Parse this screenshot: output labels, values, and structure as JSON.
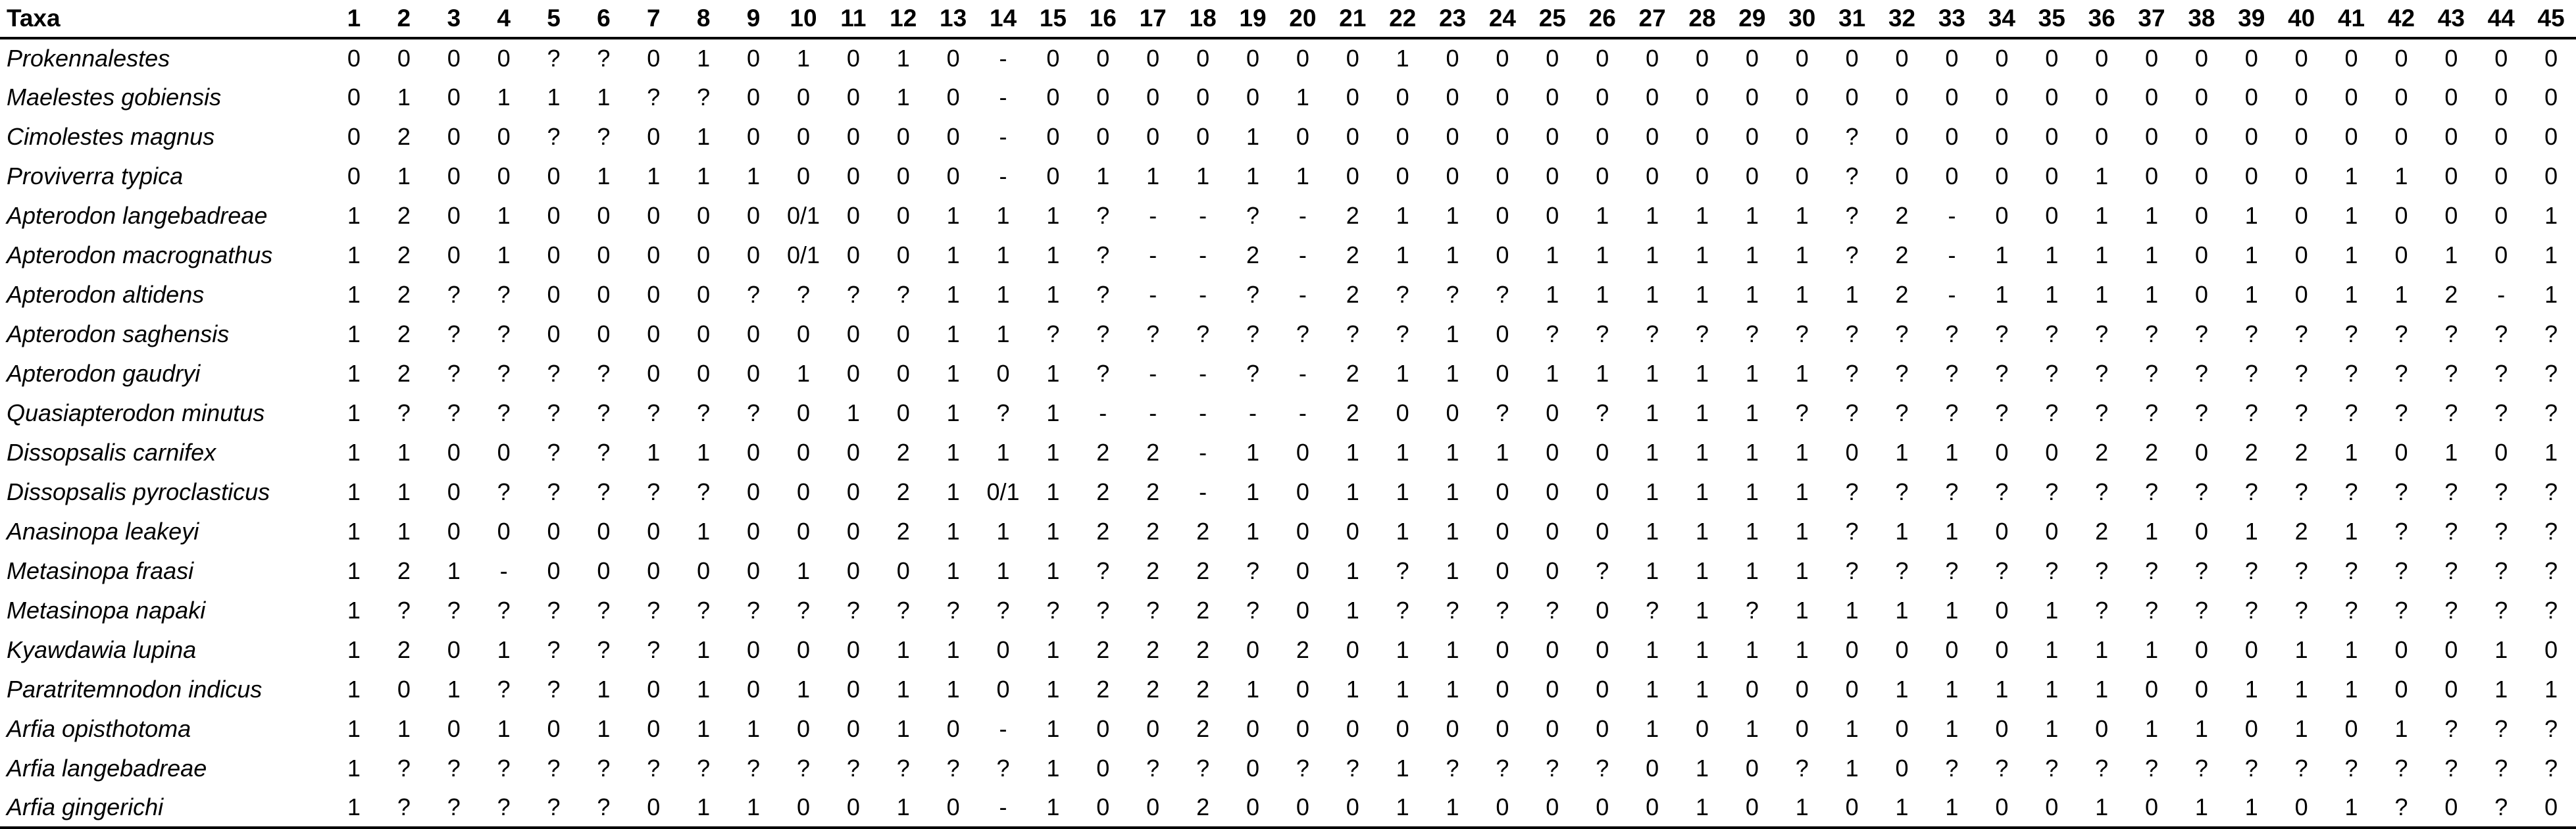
{
  "table": {
    "taxa_label": "Taxa",
    "characters": [
      "1",
      "2",
      "3",
      "4",
      "5",
      "6",
      "7",
      "8",
      "9",
      "10",
      "11",
      "12",
      "13",
      "14",
      "15",
      "16",
      "17",
      "18",
      "19",
      "20",
      "21",
      "22",
      "23",
      "24",
      "25",
      "26",
      "27",
      "28",
      "29",
      "30",
      "31",
      "32",
      "33",
      "34",
      "35",
      "36",
      "37",
      "38",
      "39",
      "40",
      "41",
      "42",
      "43",
      "44",
      "45"
    ],
    "rows": [
      {
        "taxon": "Prokennalestes",
        "states": [
          "0",
          "0",
          "0",
          "0",
          "?",
          "?",
          "0",
          "1",
          "0",
          "1",
          "0",
          "1",
          "0",
          "-",
          "0",
          "0",
          "0",
          "0",
          "0",
          "0",
          "0",
          "1",
          "0",
          "0",
          "0",
          "0",
          "0",
          "0",
          "0",
          "0",
          "0",
          "0",
          "0",
          "0",
          "0",
          "0",
          "0",
          "0",
          "0",
          "0",
          "0",
          "0",
          "0",
          "0",
          "0"
        ]
      },
      {
        "taxon": "Maelestes gobiensis",
        "states": [
          "0",
          "1",
          "0",
          "1",
          "1",
          "1",
          "?",
          "?",
          "0",
          "0",
          "0",
          "1",
          "0",
          "-",
          "0",
          "0",
          "0",
          "0",
          "0",
          "1",
          "0",
          "0",
          "0",
          "0",
          "0",
          "0",
          "0",
          "0",
          "0",
          "0",
          "0",
          "0",
          "0",
          "0",
          "0",
          "0",
          "0",
          "0",
          "0",
          "0",
          "0",
          "0",
          "0",
          "0",
          "0"
        ]
      },
      {
        "taxon": "Cimolestes magnus",
        "states": [
          "0",
          "2",
          "0",
          "0",
          "?",
          "?",
          "0",
          "1",
          "0",
          "0",
          "0",
          "0",
          "0",
          "-",
          "0",
          "0",
          "0",
          "0",
          "1",
          "0",
          "0",
          "0",
          "0",
          "0",
          "0",
          "0",
          "0",
          "0",
          "0",
          "0",
          "?",
          "0",
          "0",
          "0",
          "0",
          "0",
          "0",
          "0",
          "0",
          "0",
          "0",
          "0",
          "0",
          "0",
          "0"
        ]
      },
      {
        "taxon": "Proviverra typica",
        "states": [
          "0",
          "1",
          "0",
          "0",
          "0",
          "1",
          "1",
          "1",
          "1",
          "0",
          "0",
          "0",
          "0",
          "-",
          "0",
          "1",
          "1",
          "1",
          "1",
          "1",
          "0",
          "0",
          "0",
          "0",
          "0",
          "0",
          "0",
          "0",
          "0",
          "0",
          "?",
          "0",
          "0",
          "0",
          "0",
          "1",
          "0",
          "0",
          "0",
          "0",
          "1",
          "1",
          "0",
          "0",
          "0"
        ]
      },
      {
        "taxon": "Apterodon langebadreae",
        "states": [
          "1",
          "2",
          "0",
          "1",
          "0",
          "0",
          "0",
          "0",
          "0",
          "0/1",
          "0",
          "0",
          "1",
          "1",
          "1",
          "?",
          "-",
          "-",
          "?",
          "-",
          "2",
          "1",
          "1",
          "0",
          "0",
          "1",
          "1",
          "1",
          "1",
          "1",
          "?",
          "2",
          "-",
          "0",
          "0",
          "1",
          "1",
          "0",
          "1",
          "0",
          "1",
          "0",
          "0",
          "0",
          "1"
        ]
      },
      {
        "taxon": "Apterodon macrognathus",
        "states": [
          "1",
          "2",
          "0",
          "1",
          "0",
          "0",
          "0",
          "0",
          "0",
          "0/1",
          "0",
          "0",
          "1",
          "1",
          "1",
          "?",
          "-",
          "-",
          "2",
          "-",
          "2",
          "1",
          "1",
          "0",
          "1",
          "1",
          "1",
          "1",
          "1",
          "1",
          "?",
          "2",
          "-",
          "1",
          "1",
          "1",
          "1",
          "0",
          "1",
          "0",
          "1",
          "0",
          "1",
          "0",
          "1"
        ]
      },
      {
        "taxon": "Apterodon altidens",
        "states": [
          "1",
          "2",
          "?",
          "?",
          "0",
          "0",
          "0",
          "0",
          "?",
          "?",
          "?",
          "?",
          "1",
          "1",
          "1",
          "?",
          "-",
          "-",
          "?",
          "-",
          "2",
          "?",
          "?",
          "?",
          "1",
          "1",
          "1",
          "1",
          "1",
          "1",
          "1",
          "2",
          "-",
          "1",
          "1",
          "1",
          "1",
          "0",
          "1",
          "0",
          "1",
          "1",
          "2",
          "-",
          "1"
        ]
      },
      {
        "taxon": "Apterodon saghensis",
        "states": [
          "1",
          "2",
          "?",
          "?",
          "0",
          "0",
          "0",
          "0",
          "0",
          "0",
          "0",
          "0",
          "1",
          "1",
          "?",
          "?",
          "?",
          "?",
          "?",
          "?",
          "?",
          "?",
          "1",
          "0",
          "?",
          "?",
          "?",
          "?",
          "?",
          "?",
          "?",
          "?",
          "?",
          "?",
          "?",
          "?",
          "?",
          "?",
          "?",
          "?",
          "?",
          "?",
          "?",
          "?",
          "?"
        ]
      },
      {
        "taxon": "Apterodon gaudryi",
        "states": [
          "1",
          "2",
          "?",
          "?",
          "?",
          "?",
          "0",
          "0",
          "0",
          "1",
          "0",
          "0",
          "1",
          "0",
          "1",
          "?",
          "-",
          "-",
          "?",
          "-",
          "2",
          "1",
          "1",
          "0",
          "1",
          "1",
          "1",
          "1",
          "1",
          "1",
          "?",
          "?",
          "?",
          "?",
          "?",
          "?",
          "?",
          "?",
          "?",
          "?",
          "?",
          "?",
          "?",
          "?",
          "?"
        ]
      },
      {
        "taxon": "Quasiapterodon minutus",
        "states": [
          "1",
          "?",
          "?",
          "?",
          "?",
          "?",
          "?",
          "?",
          "?",
          "0",
          "1",
          "0",
          "1",
          "?",
          "1",
          "-",
          "-",
          "-",
          "-",
          "-",
          "2",
          "0",
          "0",
          "?",
          "0",
          "?",
          "1",
          "1",
          "1",
          "?",
          "?",
          "?",
          "?",
          "?",
          "?",
          "?",
          "?",
          "?",
          "?",
          "?",
          "?",
          "?",
          "?",
          "?",
          "?"
        ]
      },
      {
        "taxon": "Dissopsalis carnifex",
        "states": [
          "1",
          "1",
          "0",
          "0",
          "?",
          "?",
          "1",
          "1",
          "0",
          "0",
          "0",
          "2",
          "1",
          "1",
          "1",
          "2",
          "2",
          "-",
          "1",
          "0",
          "1",
          "1",
          "1",
          "1",
          "0",
          "0",
          "1",
          "1",
          "1",
          "1",
          "0",
          "1",
          "1",
          "0",
          "0",
          "2",
          "2",
          "0",
          "2",
          "2",
          "1",
          "0",
          "1",
          "0",
          "1"
        ]
      },
      {
        "taxon": "Dissopsalis pyroclasticus",
        "states": [
          "1",
          "1",
          "0",
          "?",
          "?",
          "?",
          "?",
          "?",
          "0",
          "0",
          "0",
          "2",
          "1",
          "0/1",
          "1",
          "2",
          "2",
          "-",
          "1",
          "0",
          "1",
          "1",
          "1",
          "0",
          "0",
          "0",
          "1",
          "1",
          "1",
          "1",
          "?",
          "?",
          "?",
          "?",
          "?",
          "?",
          "?",
          "?",
          "?",
          "?",
          "?",
          "?",
          "?",
          "?",
          "?"
        ]
      },
      {
        "taxon": "Anasinopa leakeyi",
        "states": [
          "1",
          "1",
          "0",
          "0",
          "0",
          "0",
          "0",
          "1",
          "0",
          "0",
          "0",
          "2",
          "1",
          "1",
          "1",
          "2",
          "2",
          "2",
          "1",
          "0",
          "0",
          "1",
          "1",
          "0",
          "0",
          "0",
          "1",
          "1",
          "1",
          "1",
          "?",
          "1",
          "1",
          "0",
          "0",
          "2",
          "1",
          "0",
          "1",
          "2",
          "1",
          "?",
          "?",
          "?",
          "?"
        ]
      },
      {
        "taxon": "Metasinopa fraasi",
        "states": [
          "1",
          "2",
          "1",
          "-",
          "0",
          "0",
          "0",
          "0",
          "0",
          "1",
          "0",
          "0",
          "1",
          "1",
          "1",
          "?",
          "2",
          "2",
          "?",
          "0",
          "1",
          "?",
          "1",
          "0",
          "0",
          "?",
          "1",
          "1",
          "1",
          "1",
          "?",
          "?",
          "?",
          "?",
          "?",
          "?",
          "?",
          "?",
          "?",
          "?",
          "?",
          "?",
          "?",
          "?",
          "?"
        ]
      },
      {
        "taxon": "Metasinopa napaki",
        "states": [
          "1",
          "?",
          "?",
          "?",
          "?",
          "?",
          "?",
          "?",
          "?",
          "?",
          "?",
          "?",
          "?",
          "?",
          "?",
          "?",
          "?",
          "2",
          "?",
          "0",
          "1",
          "?",
          "?",
          "?",
          "?",
          "0",
          "?",
          "1",
          "?",
          "1",
          "1",
          "1",
          "1",
          "0",
          "1",
          "?",
          "?",
          "?",
          "?",
          "?",
          "?",
          "?",
          "?",
          "?",
          "?"
        ]
      },
      {
        "taxon": "Kyawdawia lupina",
        "states": [
          "1",
          "2",
          "0",
          "1",
          "?",
          "?",
          "?",
          "1",
          "0",
          "0",
          "0",
          "1",
          "1",
          "0",
          "1",
          "2",
          "2",
          "2",
          "0",
          "2",
          "0",
          "1",
          "1",
          "0",
          "0",
          "0",
          "1",
          "1",
          "1",
          "1",
          "0",
          "0",
          "0",
          "0",
          "1",
          "1",
          "1",
          "0",
          "0",
          "1",
          "1",
          "0",
          "0",
          "1",
          "0"
        ]
      },
      {
        "taxon": "Paratritemnodon indicus",
        "states": [
          "1",
          "0",
          "1",
          "?",
          "?",
          "1",
          "0",
          "1",
          "0",
          "1",
          "0",
          "1",
          "1",
          "0",
          "1",
          "2",
          "2",
          "2",
          "1",
          "0",
          "1",
          "1",
          "1",
          "0",
          "0",
          "0",
          "1",
          "1",
          "0",
          "0",
          "0",
          "1",
          "1",
          "1",
          "1",
          "1",
          "0",
          "0",
          "1",
          "1",
          "1",
          "0",
          "0",
          "1",
          "1"
        ]
      },
      {
        "taxon": "Arfia opisthotoma",
        "states": [
          "1",
          "1",
          "0",
          "1",
          "0",
          "1",
          "0",
          "1",
          "1",
          "0",
          "0",
          "1",
          "0",
          "-",
          "1",
          "0",
          "0",
          "2",
          "0",
          "0",
          "0",
          "0",
          "0",
          "0",
          "0",
          "0",
          "1",
          "0",
          "1",
          "0",
          "1",
          "0",
          "1",
          "0",
          "1",
          "0",
          "1",
          "1",
          "0",
          "1",
          "0",
          "1",
          "?",
          "?",
          "?"
        ]
      },
      {
        "taxon": "Arfia langebadreae",
        "states": [
          "1",
          "?",
          "?",
          "?",
          "?",
          "?",
          "?",
          "?",
          "?",
          "?",
          "?",
          "?",
          "?",
          "?",
          "1",
          "0",
          "?",
          "?",
          "0",
          "?",
          "?",
          "1",
          "?",
          "?",
          "?",
          "?",
          "0",
          "1",
          "0",
          "?",
          "1",
          "0",
          "?",
          "?",
          "?",
          "?",
          "?",
          "?",
          "?",
          "?",
          "?",
          "?",
          "?",
          "?",
          "?"
        ]
      },
      {
        "taxon": "Arfia gingerichi",
        "states": [
          "1",
          "?",
          "?",
          "?",
          "?",
          "?",
          "0",
          "1",
          "1",
          "0",
          "0",
          "1",
          "0",
          "-",
          "1",
          "0",
          "0",
          "2",
          "0",
          "0",
          "0",
          "1",
          "1",
          "0",
          "0",
          "0",
          "0",
          "1",
          "0",
          "1",
          "0",
          "1",
          "1",
          "0",
          "0",
          "1",
          "0",
          "1",
          "1",
          "0",
          "1",
          "?",
          "0",
          "?",
          "0"
        ]
      }
    ]
  }
}
